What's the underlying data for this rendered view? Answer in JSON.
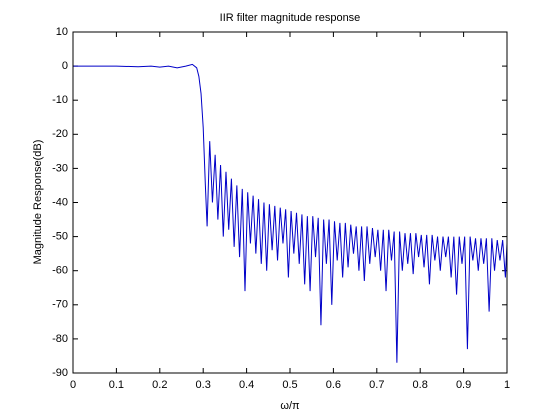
{
  "chart_data": {
    "type": "line",
    "title": "IIR filter magnitude response",
    "xlabel": "ω/π",
    "ylabel": "Magnitude Response(dB)",
    "xlim": [
      0,
      1
    ],
    "xticks": [
      0,
      0.1,
      0.2,
      0.3,
      0.4,
      0.5,
      0.6,
      0.7,
      0.8,
      0.9,
      1
    ],
    "ylim": [
      -90,
      10
    ],
    "yticks": [
      -90,
      -80,
      -70,
      -60,
      -50,
      -40,
      -30,
      -20,
      -10,
      0,
      10
    ],
    "grid": false,
    "series": [
      {
        "color": "#0000c8",
        "x": [
          0,
          0.05,
          0.1,
          0.15,
          0.18,
          0.2,
          0.22,
          0.24,
          0.26,
          0.275,
          0.285,
          0.29,
          0.295,
          0.3,
          0.305,
          0.309,
          0.315,
          0.3213,
          0.3275,
          0.3338,
          0.34,
          0.3463,
          0.3525,
          0.3588,
          0.365,
          0.3713,
          0.3775,
          0.3838,
          0.39,
          0.3963,
          0.4025,
          0.4088,
          0.415,
          0.4213,
          0.4275,
          0.4338,
          0.44,
          0.4463,
          0.4525,
          0.4588,
          0.465,
          0.4713,
          0.4775,
          0.4838,
          0.49,
          0.4963,
          0.5025,
          0.5088,
          0.515,
          0.5213,
          0.5275,
          0.5338,
          0.54,
          0.5463,
          0.5525,
          0.5588,
          0.565,
          0.5713,
          0.5775,
          0.5838,
          0.59,
          0.5963,
          0.6025,
          0.6088,
          0.615,
          0.6213,
          0.6275,
          0.6338,
          0.64,
          0.6463,
          0.6525,
          0.6588,
          0.665,
          0.6713,
          0.6775,
          0.6838,
          0.69,
          0.6963,
          0.7025,
          0.7088,
          0.715,
          0.7213,
          0.7275,
          0.7338,
          0.74,
          0.7463,
          0.7525,
          0.7588,
          0.765,
          0.7713,
          0.7775,
          0.7838,
          0.79,
          0.7963,
          0.8025,
          0.8088,
          0.815,
          0.8213,
          0.8275,
          0.8338,
          0.84,
          0.8463,
          0.8525,
          0.8588,
          0.865,
          0.8713,
          0.8775,
          0.8838,
          0.89,
          0.8963,
          0.9025,
          0.9088,
          0.915,
          0.9213,
          0.9275,
          0.9338,
          0.94,
          0.9463,
          0.9525,
          0.9588,
          0.965,
          0.9713,
          0.9775,
          0.9838,
          0.99,
          0.9963,
          1
        ],
        "values": [
          0,
          0,
          0,
          -0.2,
          0,
          -0.3,
          0,
          -0.5,
          0,
          0.5,
          -0.5,
          -3,
          -8,
          -18,
          -35,
          -47,
          -22,
          -40,
          -26,
          -45,
          -29,
          -50,
          -31,
          -48,
          -33,
          -53,
          -35,
          -56,
          -36,
          -66,
          -37,
          -52,
          -38,
          -55,
          -39,
          -58,
          -40,
          -60,
          -40.5,
          -54,
          -41,
          -57,
          -41.5,
          -52,
          -42,
          -62,
          -42.5,
          -55,
          -43,
          -58,
          -43.5,
          -64,
          -44,
          -66,
          -44,
          -56,
          -44.5,
          -76,
          -45,
          -58,
          -45,
          -70,
          -45.5,
          -57,
          -46,
          -62,
          -46,
          -59,
          -46.5,
          -55,
          -47,
          -60,
          -47,
          -63,
          -47,
          -58,
          -47.5,
          -56,
          -48,
          -60,
          -48,
          -66,
          -48,
          -57,
          -48.5,
          -87,
          -48.5,
          -60,
          -49,
          -58,
          -49,
          -61,
          -49,
          -56,
          -49.5,
          -59,
          -49.5,
          -64,
          -49.5,
          -57,
          -50,
          -60,
          -50,
          -56,
          -50,
          -62,
          -50,
          -67,
          -50,
          -58,
          -50,
          -83,
          -50,
          -57,
          -50.5,
          -60,
          -50.5,
          -58,
          -50.5,
          -72,
          -50.5,
          -60,
          -51,
          -57,
          -51,
          -62,
          -52
        ]
      }
    ]
  }
}
